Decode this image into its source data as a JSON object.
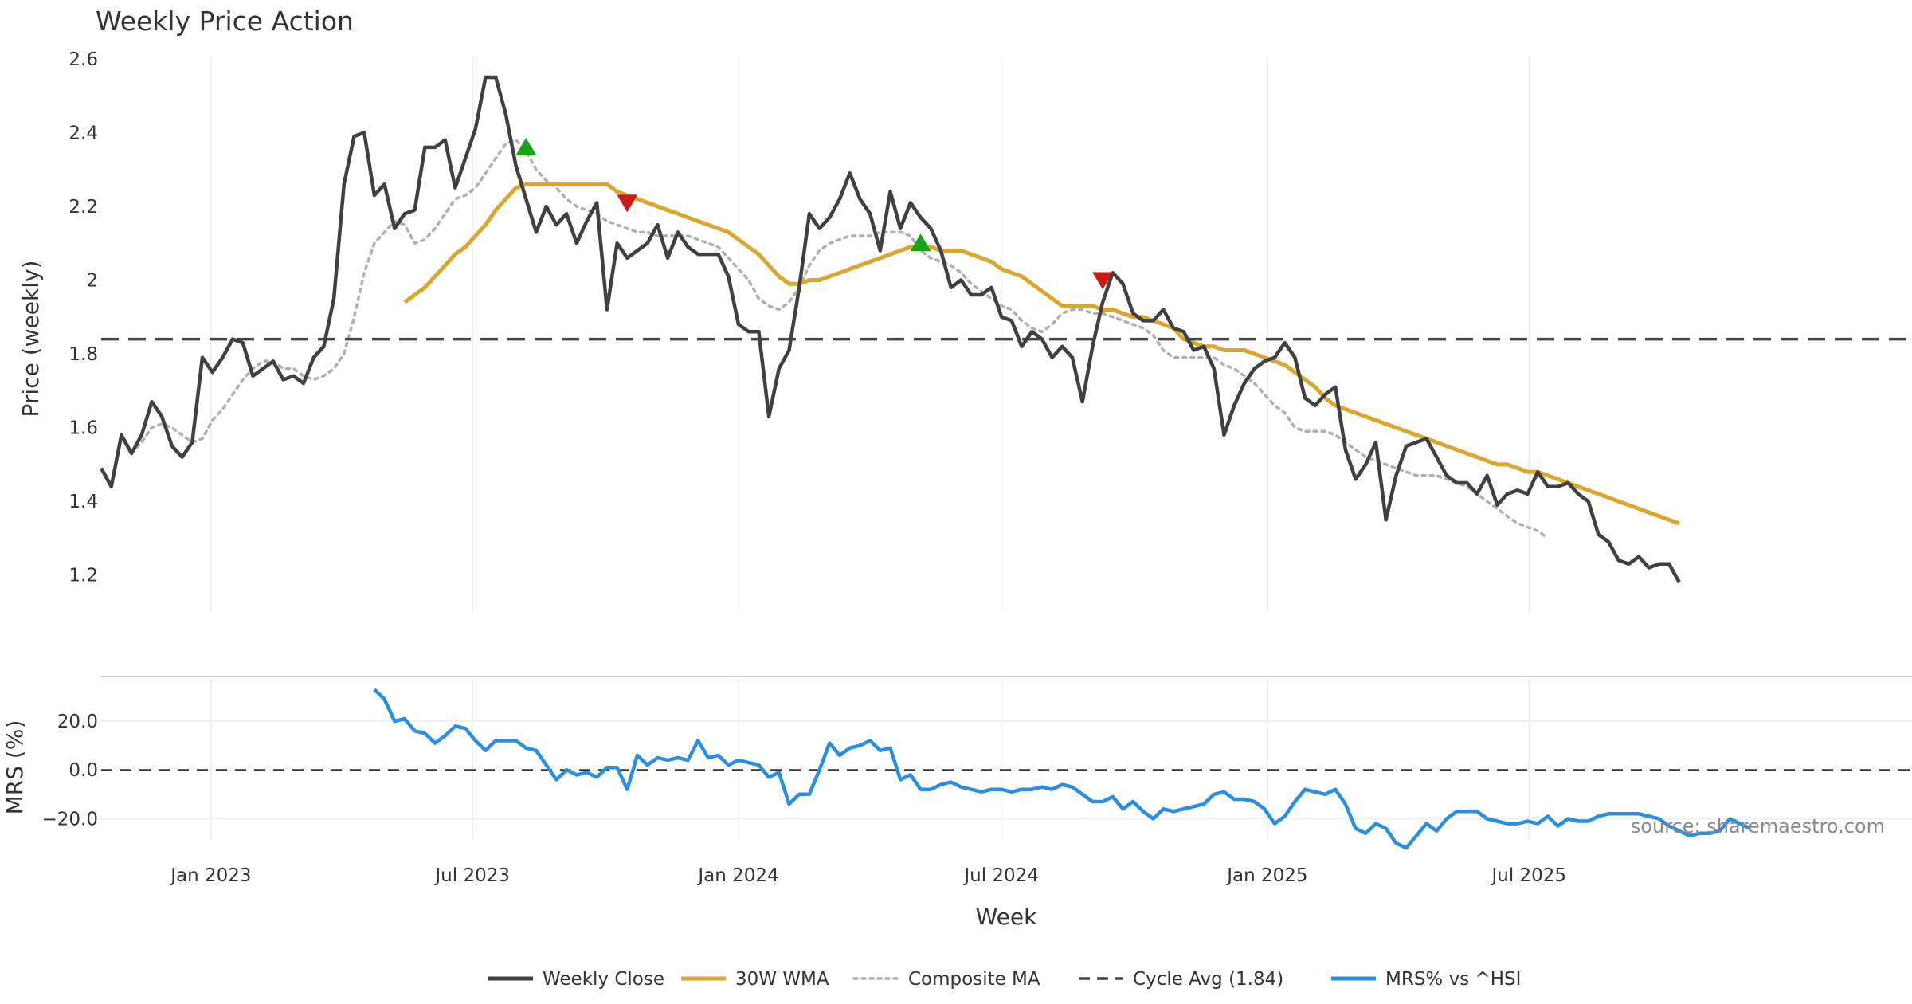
{
  "chart_data": {
    "type": "line",
    "title": "Weekly Price Action",
    "xlabel": "Week",
    "source": "source: sharemaestro.com",
    "x_ticks": [
      "Jan 2023",
      "Jul 2023",
      "Jan 2024",
      "Jul 2024",
      "Jan 2025",
      "Jul 2025"
    ],
    "x_start": "2022-10-17",
    "x_range_weeks": [
      0,
      179
    ],
    "colors": {
      "close": "#404040",
      "wma": "#d9a62e",
      "composite": "#b0b0b0",
      "cycle": "#444444",
      "mrs": "#2b8fe0",
      "buy": "#19a319",
      "sell": "#cc1a1a",
      "grid": "#ececec"
    },
    "price_panel": {
      "ylabel": "Price (weekly)",
      "ylim": [
        1.1,
        2.63
      ],
      "y_ticks": [
        "1.2",
        "1.4",
        "1.6",
        "1.8",
        "2",
        "2.2",
        "2.4",
        "2.6"
      ],
      "cycle_avg": 1.84,
      "series": [
        {
          "name": "Weekly Close",
          "start": 0,
          "values": [
            1.49,
            1.44,
            1.58,
            1.53,
            1.58,
            1.67,
            1.63,
            1.55,
            1.52,
            1.56,
            1.79,
            1.75,
            1.79,
            1.84,
            1.83,
            1.74,
            1.76,
            1.78,
            1.73,
            1.74,
            1.72,
            1.79,
            1.82,
            1.95,
            2.26,
            2.39,
            2.4,
            2.23,
            2.26,
            2.14,
            2.18,
            2.19,
            2.36,
            2.36,
            2.38,
            2.25,
            2.33,
            2.41,
            2.55,
            2.55,
            2.45,
            2.31,
            2.22,
            2.13,
            2.2,
            2.15,
            2.18,
            2.1,
            2.16,
            2.21,
            1.92,
            2.1,
            2.06,
            2.08,
            2.1,
            2.15,
            2.06,
            2.13,
            2.09,
            2.07,
            2.07,
            2.07,
            2.01,
            1.88,
            1.86,
            1.86,
            1.63,
            1.76,
            1.81,
            1.98,
            2.18,
            2.14,
            2.17,
            2.22,
            2.29,
            2.22,
            2.18,
            2.08,
            2.24,
            2.14,
            2.21,
            2.17,
            2.14,
            2.08,
            1.98,
            2.0,
            1.96,
            1.96,
            1.98,
            1.9,
            1.89,
            1.82,
            1.86,
            1.84,
            1.79,
            1.82,
            1.79,
            1.67,
            1.82,
            1.94,
            2.02,
            1.99,
            1.91,
            1.89,
            1.89,
            1.92,
            1.87,
            1.86,
            1.81,
            1.82,
            1.76,
            1.58,
            1.66,
            1.72,
            1.76,
            1.78,
            1.79,
            1.83,
            1.79,
            1.68,
            1.66,
            1.69,
            1.71,
            1.54,
            1.46,
            1.5,
            1.56,
            1.35,
            1.47,
            1.55,
            1.56,
            1.57,
            1.52,
            1.47,
            1.45,
            1.45,
            1.42,
            1.47,
            1.39,
            1.42,
            1.43,
            1.42,
            1.48,
            1.44,
            1.44,
            1.45,
            1.42,
            1.4,
            1.31,
            1.29,
            1.24,
            1.23,
            1.25,
            1.22,
            1.23,
            1.23,
            1.18
          ]
        },
        {
          "name": "30W WMA",
          "start": 30,
          "values": [
            1.94,
            1.96,
            1.98,
            2.01,
            2.04,
            2.07,
            2.09,
            2.12,
            2.15,
            2.19,
            2.22,
            2.25,
            2.26,
            2.26,
            2.26,
            2.26,
            2.26,
            2.26,
            2.26,
            2.26,
            2.26,
            2.24,
            2.23,
            2.22,
            2.21,
            2.2,
            2.19,
            2.18,
            2.17,
            2.16,
            2.15,
            2.14,
            2.13,
            2.11,
            2.09,
            2.07,
            2.04,
            2.01,
            1.99,
            1.99,
            2.0,
            2.0,
            2.01,
            2.02,
            2.03,
            2.04,
            2.05,
            2.06,
            2.07,
            2.08,
            2.09,
            2.09,
            2.09,
            2.08,
            2.08,
            2.08,
            2.07,
            2.06,
            2.05,
            2.03,
            2.02,
            2.01,
            1.99,
            1.97,
            1.95,
            1.93,
            1.93,
            1.93,
            1.93,
            1.92,
            1.92,
            1.91,
            1.9,
            1.9,
            1.89,
            1.88,
            1.87,
            1.84,
            1.83,
            1.82,
            1.82,
            1.81,
            1.81,
            1.81,
            1.8,
            1.79,
            1.78,
            1.77,
            1.75,
            1.73,
            1.71,
            1.68,
            1.66,
            1.65,
            1.64,
            1.63,
            1.62,
            1.61,
            1.6,
            1.59,
            1.58,
            1.57,
            1.56,
            1.55,
            1.54,
            1.53,
            1.52,
            1.51,
            1.5,
            1.5,
            1.49,
            1.48,
            1.48,
            1.47,
            1.46,
            1.45,
            1.44,
            1.43,
            1.42,
            1.41,
            1.4,
            1.39,
            1.38,
            1.37,
            1.36,
            1.35,
            1.34
          ]
        },
        {
          "name": "Composite MA",
          "start": 3,
          "values": [
            1.53,
            1.56,
            1.6,
            1.61,
            1.6,
            1.58,
            1.56,
            1.57,
            1.62,
            1.65,
            1.69,
            1.73,
            1.76,
            1.78,
            1.78,
            1.76,
            1.76,
            1.74,
            1.73,
            1.74,
            1.76,
            1.8,
            1.9,
            2.02,
            2.1,
            2.13,
            2.16,
            2.15,
            2.1,
            2.11,
            2.14,
            2.18,
            2.22,
            2.23,
            2.25,
            2.29,
            2.33,
            2.37,
            2.38,
            2.35,
            2.3,
            2.27,
            2.25,
            2.22,
            2.2,
            2.19,
            2.18,
            2.16,
            2.15,
            2.14,
            2.13,
            2.13,
            2.12,
            2.12,
            2.12,
            2.12,
            2.11,
            2.1,
            2.09,
            2.06,
            2.03,
            2.0,
            1.95,
            1.93,
            1.92,
            1.94,
            1.98,
            2.04,
            2.08,
            2.1,
            2.11,
            2.12,
            2.12,
            2.12,
            2.13,
            2.13,
            2.13,
            2.12,
            2.08,
            2.06,
            2.05,
            2.04,
            2.02,
            1.99,
            1.97,
            1.95,
            1.93,
            1.92,
            1.89,
            1.87,
            1.86,
            1.88,
            1.91,
            1.92,
            1.92,
            1.91,
            1.91,
            1.9,
            1.89,
            1.88,
            1.87,
            1.85,
            1.81,
            1.79,
            1.79,
            1.79,
            1.79,
            1.79,
            1.77,
            1.76,
            1.74,
            1.72,
            1.69,
            1.66,
            1.64,
            1.6,
            1.59,
            1.59,
            1.59,
            1.58,
            1.56,
            1.54,
            1.52,
            1.51,
            1.5,
            1.49,
            1.48,
            1.47,
            1.47,
            1.47,
            1.46,
            1.45,
            1.44,
            1.42,
            1.4,
            1.38,
            1.36,
            1.34,
            1.33,
            1.32,
            1.3
          ]
        },
        {
          "name": "Cycle Avg (1.84)",
          "value": 1.84
        }
      ],
      "buy_signals": [
        {
          "week": 42,
          "price": 2.36
        },
        {
          "week": 81,
          "price": 2.1
        }
      ],
      "sell_signals": [
        {
          "week": 52,
          "price": 2.21
        },
        {
          "week": 99,
          "price": 2.0
        }
      ]
    },
    "mrs_panel": {
      "ylabel": "MRS (%)",
      "ylim": [
        -29.0,
        37.0
      ],
      "y_ticks": [
        "−20.0",
        "0.0",
        "20.0"
      ],
      "zero_line": 0,
      "series": [
        {
          "name": "MRS% vs ^HSI",
          "start": 27,
          "values": [
            33,
            29,
            20,
            21,
            16,
            15,
            11,
            14,
            18,
            17,
            12,
            8,
            12,
            12,
            12,
            9,
            8,
            2,
            -4,
            0,
            -2,
            -1,
            -3,
            1,
            1,
            -8,
            6,
            2,
            5,
            4,
            5,
            4,
            12,
            5,
            6,
            2,
            4,
            3,
            2,
            -3,
            -1,
            -14,
            -10,
            -10,
            0,
            11,
            6,
            9,
            10,
            12,
            8,
            9,
            -4,
            -2,
            -8,
            -8,
            -6,
            -5,
            -7,
            -8,
            -9,
            -8,
            -8,
            -9,
            -8,
            -8,
            -7,
            -8,
            -6,
            -7,
            -10,
            -13,
            -13,
            -11,
            -16,
            -13,
            -17,
            -20,
            -16,
            -17,
            -16,
            -15,
            -14,
            -10,
            -9,
            -12,
            -12,
            -13,
            -16,
            -22,
            -19,
            -13,
            -8,
            -9,
            -10,
            -8,
            -14,
            -24,
            -26,
            -22,
            -24,
            -30,
            -32,
            -27,
            -22,
            -25,
            -20,
            -17,
            -17,
            -17,
            -20,
            -21,
            -22,
            -22,
            -21,
            -22,
            -19,
            -23,
            -20,
            -21,
            -21,
            -19,
            -18,
            -18,
            -18,
            -18,
            -19,
            -20,
            -23,
            -25,
            -27,
            -26,
            -26,
            -25,
            -20,
            -22,
            -24
          ]
        }
      ]
    },
    "legend": [
      {
        "label": "Weekly Close",
        "style": "solid",
        "color": "#404040"
      },
      {
        "label": "30W WMA",
        "style": "solid",
        "color": "#d9a62e"
      },
      {
        "label": "Composite MA",
        "style": "dotted",
        "color": "#b0b0b0"
      },
      {
        "label": "Cycle Avg (1.84)",
        "style": "dashed",
        "color": "#444444"
      },
      {
        "label": "MRS% vs ^HSI",
        "style": "solid",
        "color": "#2b8fe0"
      }
    ]
  }
}
